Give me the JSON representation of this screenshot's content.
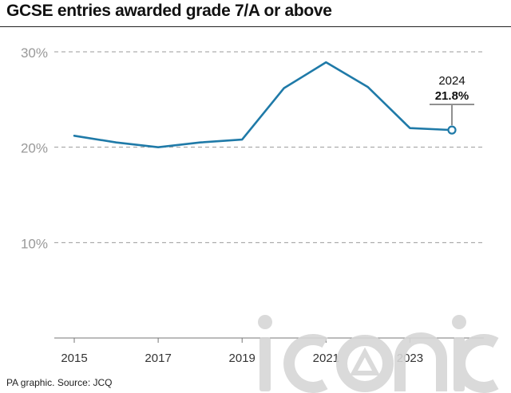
{
  "title": "GCSE entries awarded grade 7/A or above",
  "source": "PA graphic. Source: JCQ",
  "watermark": "iconic",
  "colors": {
    "line": "#1f7aa8",
    "grid": "#9a9a9a",
    "axis": "#777777",
    "tick_label": "#999999",
    "watermark": "#d6d6d6"
  },
  "chart_data": {
    "type": "line",
    "x": [
      2015,
      2016,
      2017,
      2018,
      2019,
      2020,
      2021,
      2022,
      2023,
      2024
    ],
    "series": [
      {
        "values": [
          21.2,
          20.5,
          20.0,
          20.5,
          20.8,
          26.2,
          28.9,
          26.3,
          22.0,
          21.8
        ]
      }
    ],
    "xticks": [
      "2015",
      "2017",
      "2019",
      "2021",
      "2023"
    ],
    "yticks": [
      "30%",
      "20%",
      "10%"
    ],
    "ylim": [
      0,
      30
    ],
    "grid": true,
    "annotation": {
      "x": 2024,
      "label_year": "2024",
      "label_value": "21.8%"
    }
  }
}
